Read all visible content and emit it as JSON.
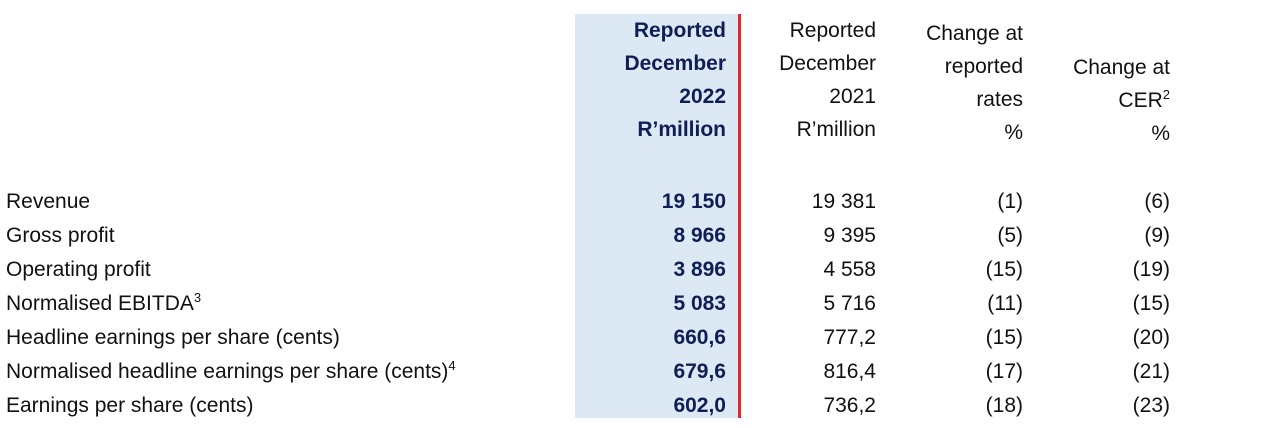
{
  "headers": {
    "col1": [
      "Reported",
      "December",
      "2022",
      "R’million"
    ],
    "col2": [
      "Reported",
      "December",
      "2021",
      "R’million"
    ],
    "col3": [
      "Change at",
      "reported",
      "rates",
      "%"
    ],
    "col4": [
      "Change at",
      "CER",
      "%"
    ],
    "col4_sup": "2"
  },
  "rows": [
    {
      "label": "Revenue",
      "sup": "",
      "v2022": "19 150",
      "v2021": "19 381",
      "chg": "(1)",
      "cer": "(6)"
    },
    {
      "label": "Gross profit",
      "sup": "",
      "v2022": "8 966",
      "v2021": "9 395",
      "chg": "(5)",
      "cer": "(9)"
    },
    {
      "label": "Operating profit",
      "sup": "",
      "v2022": "3 896",
      "v2021": "4 558",
      "chg": "(15)",
      "cer": "(19)"
    },
    {
      "label": "Normalised EBITDA",
      "sup": "3",
      "v2022": "5 083",
      "v2021": "5 716",
      "chg": "(11)",
      "cer": "(15)"
    },
    {
      "label": "Headline earnings per share (cents)",
      "sup": "",
      "v2022": "660,6",
      "v2021": "777,2",
      "chg": "(15)",
      "cer": "(20)"
    },
    {
      "label": "Normalised headline earnings per share (cents)",
      "sup": "4",
      "v2022": "679,6",
      "v2021": "816,4",
      "chg": "(17)",
      "cer": "(21)"
    },
    {
      "label": "Earnings per share (cents)",
      "sup": "",
      "v2022": "602,0",
      "v2021": "736,2",
      "chg": "(18)",
      "cer": "(23)"
    }
  ],
  "colors": {
    "highlight": "#dce9f5",
    "divider": "#e3262b",
    "emphasis_text": "#0f1f55"
  }
}
